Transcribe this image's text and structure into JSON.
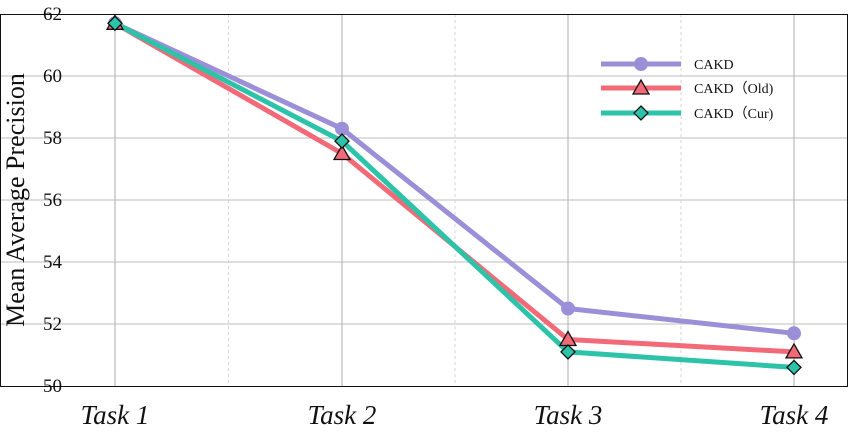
{
  "chart_data": {
    "type": "line",
    "categories": [
      "Task 1",
      "Task 2",
      "Task 3",
      "Task 4"
    ],
    "ylabel": "Mean Average Precision",
    "xlabel": "",
    "ylim": [
      50,
      62
    ],
    "yticks": [
      50,
      52,
      54,
      56,
      58,
      60,
      62
    ],
    "grid": true,
    "legend_position": "top-right",
    "series": [
      {
        "name": "CAKD",
        "values": [
          61.7,
          58.3,
          52.5,
          51.7
        ],
        "color": "#9b8fd8",
        "marker": "circle"
      },
      {
        "name": "CAKD（Old)",
        "values": [
          61.7,
          57.5,
          51.5,
          51.1
        ],
        "color": "#f26a78",
        "marker": "triangle"
      },
      {
        "name": "CAKD（Cur)",
        "values": [
          61.7,
          57.9,
          51.1,
          50.6
        ],
        "color": "#2cc3a8",
        "marker": "diamond"
      }
    ]
  }
}
